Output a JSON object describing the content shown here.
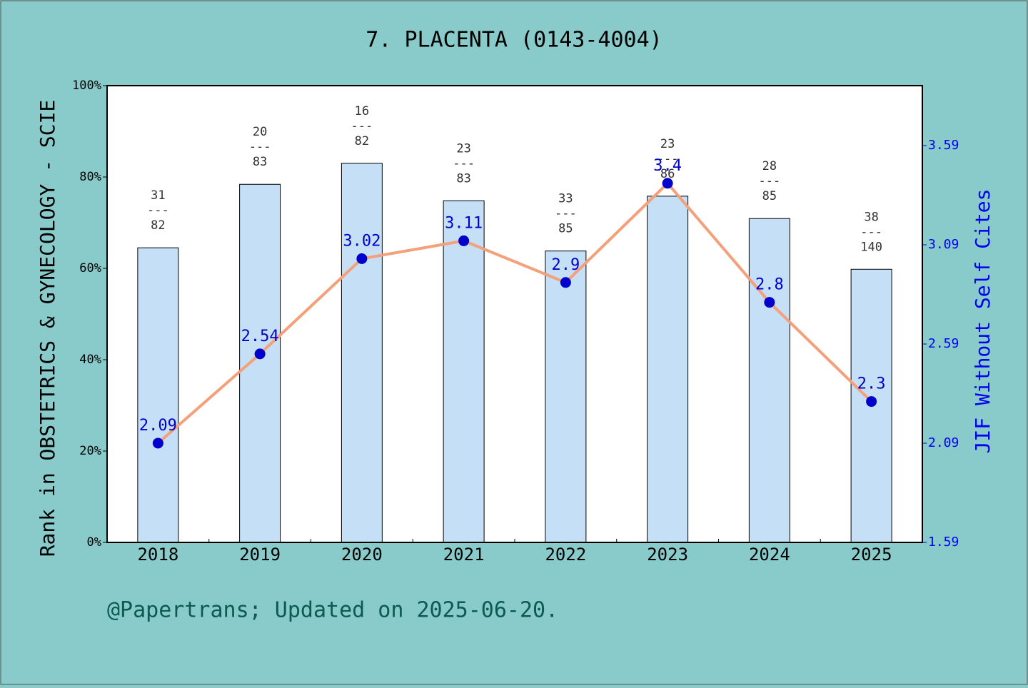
{
  "chart_data": {
    "type": "bar_line",
    "title": "7. PLACENTA (0143-4004)",
    "y_label": "Rank in OBSTETRICS & GYNECOLOGY - SCIE",
    "y2_label": "JIF Without Self Cites",
    "footer": "@Papertrans; Updated on 2025-06-20.",
    "categories": [
      "2018",
      "2019",
      "2020",
      "2021",
      "2022",
      "2023",
      "2024",
      "2025"
    ],
    "bars": {
      "color": "#c5dff7",
      "values": [
        64.5,
        78.4,
        83.0,
        74.8,
        63.8,
        75.8,
        70.9,
        59.8
      ],
      "ranks": [
        "31",
        "20",
        "16",
        "23",
        "33",
        "23",
        "28",
        "38"
      ],
      "separator": "---",
      "totals": [
        "82",
        "83",
        "82",
        "83",
        "85",
        "86",
        "85",
        "140"
      ]
    },
    "series": [
      {
        "axis": "y2",
        "color": "#f4a07a",
        "marker_color": "#0000cc",
        "values": [
          2.09,
          2.54,
          3.02,
          3.11,
          2.9,
          3.4,
          2.8,
          2.3
        ]
      }
    ],
    "ylim": [
      0,
      100
    ],
    "yticks": [
      {
        "value": 0,
        "label": "0%"
      },
      {
        "value": 20,
        "label": "20%"
      },
      {
        "value": 40,
        "label": "40%"
      },
      {
        "value": 60,
        "label": "60%"
      },
      {
        "value": 80,
        "label": "80%"
      },
      {
        "value": 100,
        "label": "100%"
      }
    ],
    "y2lim": [
      1.59,
      3.892
    ],
    "y2ticks": [
      1.59,
      2.09,
      2.59,
      3.09,
      3.59
    ]
  }
}
